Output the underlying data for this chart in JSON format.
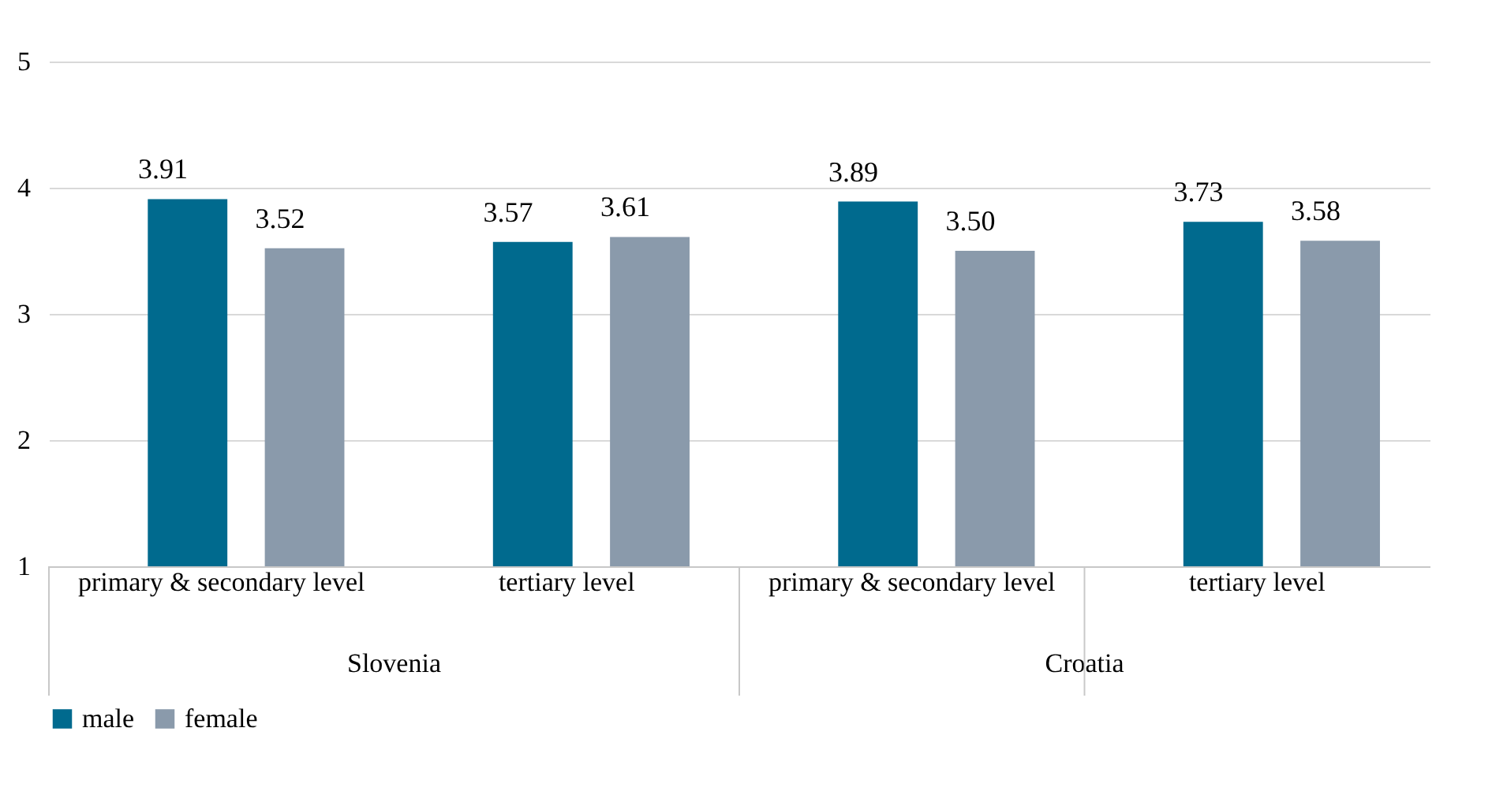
{
  "chart_data": {
    "type": "bar",
    "categories": [
      "primary & secondary level",
      "tertiary level",
      "primary & secondary level",
      "tertiary level"
    ],
    "series": [
      {
        "name": "male",
        "color": "#006a8e",
        "values": [
          3.91,
          3.57,
          3.89,
          3.73
        ],
        "value_labels": [
          "3.91",
          "3.57",
          "3.89",
          "3.73"
        ]
      },
      {
        "name": "female",
        "color": "#8a9aab",
        "values": [
          3.52,
          3.61,
          3.5,
          3.58
        ],
        "value_labels": [
          "3.52",
          "3.61",
          "3.50",
          "3.58"
        ]
      }
    ],
    "annotations": [
      "Slovenia",
      "Croatia"
    ],
    "ylim": [
      1,
      5
    ],
    "yticks": [
      1,
      2,
      3,
      4,
      5
    ],
    "grid": "y",
    "legend": "bottom"
  }
}
